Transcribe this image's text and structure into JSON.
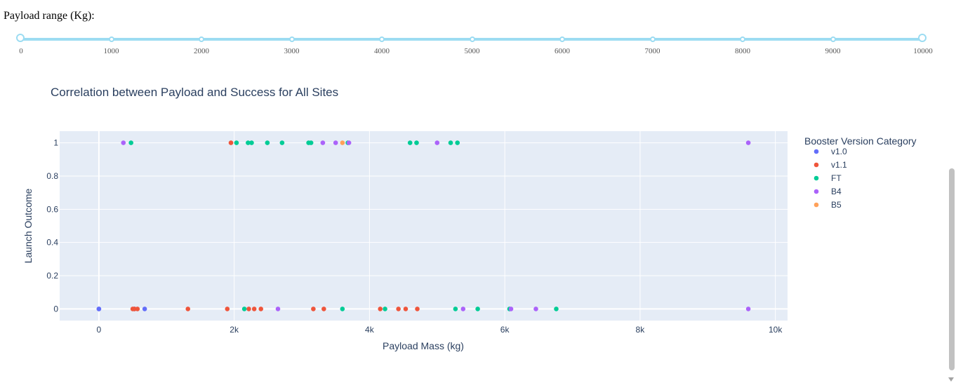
{
  "range_slider": {
    "label": "Payload range (Kg):",
    "min": 0,
    "max": 10000,
    "selected": [
      0,
      10000
    ],
    "marks": [
      "0",
      "1000",
      "2000",
      "3000",
      "4000",
      "5000",
      "6000",
      "7000",
      "8000",
      "9000",
      "10000"
    ],
    "color": "#9cdcf2"
  },
  "chart_data": {
    "type": "scatter",
    "title": "Correlation between Payload and Success for All Sites",
    "xlabel": "Payload Mass (kg)",
    "ylabel": "Launch Outcome",
    "xlim": [
      -580,
      10180
    ],
    "ylim": [
      -0.07,
      1.07
    ],
    "x_ticks": [
      0,
      2000,
      4000,
      6000,
      8000,
      10000
    ],
    "x_tick_labels": [
      "0",
      "2k",
      "4k",
      "6k",
      "8k",
      "10k"
    ],
    "y_ticks": [
      0,
      0.2,
      0.4,
      0.6,
      0.8,
      1
    ],
    "y_tick_labels": [
      "0",
      "0.2",
      "0.4",
      "0.6",
      "0.8",
      "1"
    ],
    "grid": true,
    "plot_background": "#e5ecf6",
    "legend_title": "Booster Version Category",
    "legend_position": "right",
    "series": [
      {
        "name": "v1.0",
        "color": "#636efa",
        "points": [
          [
            0,
            0
          ],
          [
            0,
            0
          ],
          [
            525,
            0
          ],
          [
            677,
            0
          ]
        ]
      },
      {
        "name": "v1.1",
        "color": "#ef553b",
        "points": [
          [
            500,
            0
          ],
          [
            525,
            0
          ],
          [
            570,
            0
          ],
          [
            1316,
            0
          ],
          [
            1898,
            0
          ],
          [
            1952,
            1
          ],
          [
            2216,
            0
          ],
          [
            2296,
            0
          ],
          [
            2395,
            0
          ],
          [
            3170,
            0
          ],
          [
            3325,
            0
          ],
          [
            4159,
            0
          ],
          [
            4428,
            0
          ],
          [
            4535,
            0
          ],
          [
            4707,
            0
          ]
        ]
      },
      {
        "name": "FT",
        "color": "#00cc96",
        "points": [
          [
            475,
            1
          ],
          [
            2034,
            1
          ],
          [
            2150,
            0
          ],
          [
            2205,
            1
          ],
          [
            2257,
            1
          ],
          [
            2490,
            1
          ],
          [
            2708,
            1
          ],
          [
            3100,
            1
          ],
          [
            3136,
            1
          ],
          [
            3600,
            0
          ],
          [
            3681,
            1
          ],
          [
            4230,
            0
          ],
          [
            4600,
            1
          ],
          [
            4696,
            1
          ],
          [
            5200,
            1
          ],
          [
            5271,
            0
          ],
          [
            5300,
            1
          ],
          [
            5600,
            0
          ],
          [
            6070,
            0
          ],
          [
            6761,
            0
          ]
        ]
      },
      {
        "name": "B4",
        "color": "#ab63fa",
        "points": [
          [
            362,
            1
          ],
          [
            2647,
            0
          ],
          [
            3310,
            1
          ],
          [
            3500,
            1
          ],
          [
            3696,
            1
          ],
          [
            5000,
            1
          ],
          [
            5384,
            0
          ],
          [
            6092,
            0
          ],
          [
            6460,
            0
          ],
          [
            9600,
            1
          ],
          [
            9600,
            0
          ]
        ]
      },
      {
        "name": "B5",
        "color": "#ffa15a",
        "points": [
          [
            3600,
            1
          ]
        ]
      }
    ]
  }
}
